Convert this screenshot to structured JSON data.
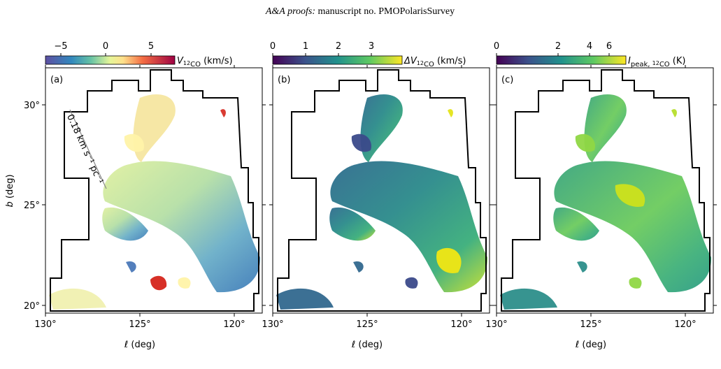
{
  "header": {
    "journal": "A&A proofs:",
    "manuscript": "manuscript no. PMOPolarisSurvey"
  },
  "panels": [
    {
      "label": "(a)",
      "colorbar": {
        "label": [
          {
            "text": "V",
            "style": "italic"
          },
          {
            "text": "12",
            "style": "sub-sup"
          },
          {
            "text": "CO",
            "style": "sub"
          },
          {
            "text": " (km/s)",
            "style": "normal"
          }
        ],
        "ticks": [
          "−5",
          "0",
          "5"
        ]
      }
    },
    {
      "label": "(b)",
      "colorbar": {
        "label": [
          {
            "text": "ΔV",
            "style": "italic"
          },
          {
            "text": "12",
            "style": "sub-sup"
          },
          {
            "text": "CO",
            "style": "sub"
          },
          {
            "text": " (km/s)",
            "style": "normal"
          }
        ],
        "ticks": [
          "0",
          "1",
          "2",
          "3"
        ]
      }
    },
    {
      "label": "(c)",
      "colorbar": {
        "label": [
          {
            "text": "I",
            "style": "italic"
          },
          {
            "text": "peak, ",
            "style": "sub"
          },
          {
            "text": "12",
            "style": "sub-sup"
          },
          {
            "text": "CO",
            "style": "sub"
          },
          {
            "text": " (K)",
            "style": "normal"
          }
        ],
        "ticks": [
          "0",
          "2",
          "4",
          "6"
        ]
      }
    }
  ],
  "axes": {
    "xlabel": [
      {
        "text": "ℓ",
        "style": "italic"
      },
      {
        "text": " (deg)",
        "style": "normal"
      }
    ],
    "ylabel": [
      {
        "text": "b",
        "style": "italic"
      },
      {
        "text": " (deg)",
        "style": "normal"
      }
    ],
    "xticks": [
      "130°",
      "125°",
      "120°"
    ],
    "yticks": [
      "30°",
      "25°",
      "20°"
    ]
  },
  "annotation": "0.18 km s⁻¹ pc⁻¹"
}
